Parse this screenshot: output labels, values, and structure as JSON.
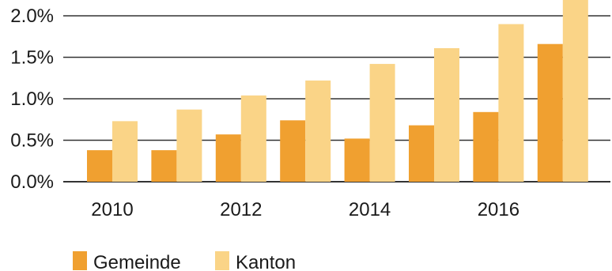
{
  "chart_data": {
    "type": "bar",
    "categories": [
      "2010",
      "2011",
      "2012",
      "2013",
      "2014",
      "2015",
      "2016",
      "2017"
    ],
    "x_tick_labels": [
      "2010",
      "",
      "2012",
      "",
      "2014",
      "",
      "2016",
      ""
    ],
    "y_tick_labels": [
      "0.0%",
      "0.5%",
      "1.0%",
      "1.5%",
      "2.0%"
    ],
    "y_ticks": [
      0,
      0.5,
      1.0,
      1.5,
      2.0
    ],
    "ylim": [
      0,
      2.2
    ],
    "grid": "horizontal",
    "legend_position": "bottom-left",
    "series": [
      {
        "name": "Gemeinde",
        "color": "#f0a030",
        "values": [
          0.38,
          0.38,
          0.57,
          0.74,
          0.52,
          0.68,
          0.84,
          1.66
        ]
      },
      {
        "name": "Kanton",
        "color": "#fad487",
        "values": [
          0.73,
          0.87,
          1.04,
          1.22,
          1.42,
          1.61,
          1.9,
          2.2
        ]
      }
    ]
  }
}
